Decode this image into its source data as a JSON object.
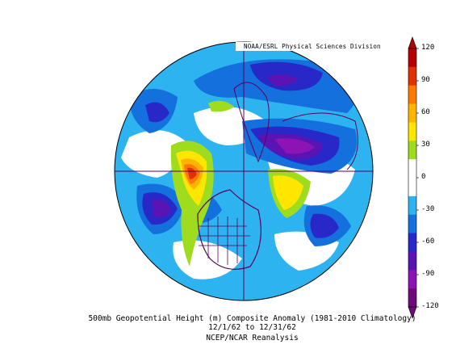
{
  "credit": "NOAA/ESRL Physical Sciences Division",
  "caption": {
    "line1": "500mb Geopotential Height (m) Composite Anomaly (1981-2010 Climatology)",
    "line2": "12/1/62 to 12/31/62",
    "line3": "NCEP/NCAR Reanalysis"
  },
  "colorbar": {
    "ticks": [
      "120",
      "90",
      "60",
      "30",
      "0",
      "-30",
      "-60",
      "-90",
      "-120"
    ],
    "colors": [
      "#b40000",
      "#e03200",
      "#ff7800",
      "#ffb400",
      "#ffe600",
      "#a0dc1e",
      "#ffffff",
      "#ffffff",
      "#2db4f0",
      "#1470dc",
      "#2828c8",
      "#5a14b4",
      "#8c14b4",
      "#6e0a7a"
    ]
  }
}
